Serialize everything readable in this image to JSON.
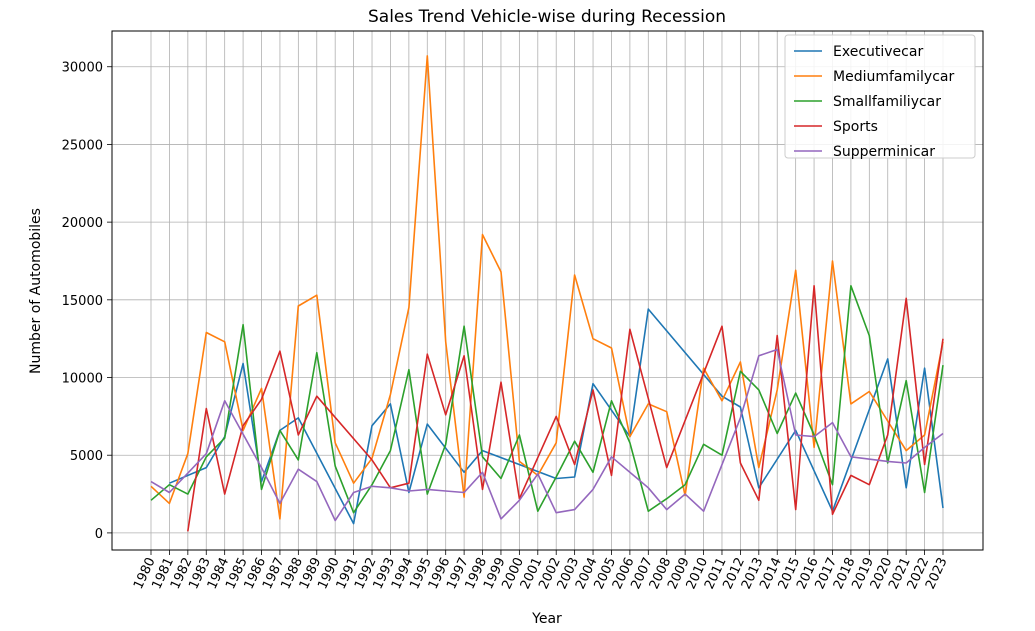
{
  "chart_data": {
    "type": "line",
    "title": "Sales Trend Vehicle-wise during Recession",
    "xlabel": "Year",
    "ylabel": "Number of Automobiles",
    "ylim": [
      -1100,
      32300
    ],
    "yticks": [
      0,
      5000,
      10000,
      15000,
      20000,
      25000,
      30000
    ],
    "grid": true,
    "legend_position": "top-right",
    "categories": [
      "1980",
      "1981",
      "1982",
      "1983",
      "1984",
      "1985",
      "1986",
      "1987",
      "1988",
      "1989",
      "1990",
      "1991",
      "1992",
      "1993",
      "1994",
      "1995",
      "1996",
      "1997",
      "1998",
      "1999",
      "2000",
      "2001",
      "2002",
      "2003",
      "2004",
      "2005",
      "2006",
      "2007",
      "2008",
      "2009",
      "2010",
      "2011",
      "2012",
      "2013",
      "2014",
      "2015",
      "2016",
      "2017",
      "2018",
      "2019",
      "2020",
      "2021",
      "2022",
      "2023"
    ],
    "series": [
      {
        "name": "Executivecar",
        "color": "#1f77b4",
        "points": [
          [
            1981,
            3200
          ],
          [
            1983,
            4200
          ],
          [
            1984,
            6200
          ],
          [
            1985,
            10900
          ],
          [
            1986,
            3300
          ],
          [
            1987,
            6600
          ],
          [
            1988,
            7400
          ],
          [
            1991,
            600
          ],
          [
            1992,
            6900
          ],
          [
            1993,
            8300
          ],
          [
            1994,
            2600
          ],
          [
            1995,
            7000
          ],
          [
            1997,
            3900
          ],
          [
            1998,
            5300
          ],
          [
            2002,
            3500
          ],
          [
            2003,
            3600
          ],
          [
            2004,
            9600
          ],
          [
            2006,
            6200
          ],
          [
            2007,
            14400
          ],
          [
            2011,
            8800
          ],
          [
            2012,
            8100
          ],
          [
            2013,
            2900
          ],
          [
            2015,
            6600
          ],
          [
            2017,
            1400
          ],
          [
            2020,
            11200
          ],
          [
            2021,
            2900
          ],
          [
            2022,
            10600
          ],
          [
            2023,
            1600
          ]
        ]
      },
      {
        "name": "Mediumfamilycar",
        "color": "#ff7f0e",
        "points": [
          [
            1980,
            3000
          ],
          [
            1981,
            1900
          ],
          [
            1982,
            5100
          ],
          [
            1983,
            12900
          ],
          [
            1984,
            12300
          ],
          [
            1985,
            6600
          ],
          [
            1986,
            9300
          ],
          [
            1987,
            900
          ],
          [
            1988,
            14600
          ],
          [
            1989,
            15300
          ],
          [
            1990,
            5800
          ],
          [
            1991,
            3200
          ],
          [
            1992,
            4800
          ],
          [
            1993,
            8900
          ],
          [
            1994,
            14500
          ],
          [
            1995,
            30700
          ],
          [
            1996,
            12300
          ],
          [
            1997,
            2300
          ],
          [
            1998,
            19200
          ],
          [
            1999,
            16800
          ],
          [
            2000,
            4600
          ],
          [
            2001,
            3700
          ],
          [
            2002,
            5800
          ],
          [
            2003,
            16600
          ],
          [
            2004,
            12500
          ],
          [
            2005,
            11900
          ],
          [
            2006,
            6200
          ],
          [
            2007,
            8300
          ],
          [
            2008,
            7800
          ],
          [
            2009,
            2400
          ],
          [
            2010,
            10600
          ],
          [
            2011,
            8500
          ],
          [
            2012,
            11000
          ],
          [
            2013,
            4200
          ],
          [
            2014,
            9200
          ],
          [
            2015,
            16900
          ],
          [
            2016,
            5500
          ],
          [
            2017,
            17500
          ],
          [
            2018,
            8300
          ],
          [
            2019,
            9100
          ],
          [
            2020,
            7200
          ],
          [
            2021,
            5300
          ],
          [
            2022,
            6300
          ],
          [
            2023,
            12300
          ]
        ]
      },
      {
        "name": "Smallfamiliycar",
        "color": "#2ca02c",
        "points": [
          [
            1980,
            2100
          ],
          [
            1981,
            3100
          ],
          [
            1982,
            2500
          ],
          [
            1983,
            4900
          ],
          [
            1984,
            6100
          ],
          [
            1985,
            13400
          ],
          [
            1986,
            2800
          ],
          [
            1987,
            6600
          ],
          [
            1988,
            4700
          ],
          [
            1989,
            11600
          ],
          [
            1990,
            4300
          ],
          [
            1991,
            1300
          ],
          [
            1992,
            3100
          ],
          [
            1993,
            5300
          ],
          [
            1994,
            10500
          ],
          [
            1995,
            2500
          ],
          [
            1996,
            5700
          ],
          [
            1997,
            13300
          ],
          [
            1998,
            4900
          ],
          [
            1999,
            3500
          ],
          [
            2000,
            6300
          ],
          [
            2001,
            1400
          ],
          [
            2002,
            3600
          ],
          [
            2003,
            5900
          ],
          [
            2004,
            3900
          ],
          [
            2005,
            8500
          ],
          [
            2006,
            5800
          ],
          [
            2007,
            1400
          ],
          [
            2008,
            2200
          ],
          [
            2009,
            3100
          ],
          [
            2010,
            5700
          ],
          [
            2011,
            5000
          ],
          [
            2012,
            10400
          ],
          [
            2013,
            9200
          ],
          [
            2014,
            6400
          ],
          [
            2015,
            9000
          ],
          [
            2016,
            6300
          ],
          [
            2017,
            3100
          ],
          [
            2018,
            15900
          ],
          [
            2019,
            12700
          ],
          [
            2020,
            4500
          ],
          [
            2021,
            9800
          ],
          [
            2022,
            2600
          ],
          [
            2023,
            10800
          ]
        ]
      },
      {
        "name": "Sports",
        "color": "#d62728",
        "points": [
          [
            1982,
            100
          ],
          [
            1983,
            8000
          ],
          [
            1984,
            2500
          ],
          [
            1985,
            6900
          ],
          [
            1986,
            8600
          ],
          [
            1987,
            11700
          ],
          [
            1988,
            6300
          ],
          [
            1989,
            8800
          ],
          [
            1992,
            4700
          ],
          [
            1993,
            2900
          ],
          [
            1994,
            3200
          ],
          [
            1995,
            11500
          ],
          [
            1996,
            7600
          ],
          [
            1997,
            11400
          ],
          [
            1998,
            2800
          ],
          [
            1999,
            9700
          ],
          [
            2000,
            2200
          ],
          [
            2002,
            7500
          ],
          [
            2003,
            4400
          ],
          [
            2004,
            9200
          ],
          [
            2005,
            3700
          ],
          [
            2006,
            13100
          ],
          [
            2008,
            4200
          ],
          [
            2011,
            13300
          ],
          [
            2012,
            4500
          ],
          [
            2013,
            2100
          ],
          [
            2014,
            12700
          ],
          [
            2015,
            1500
          ],
          [
            2016,
            15900
          ],
          [
            2017,
            1200
          ],
          [
            2018,
            3700
          ],
          [
            2019,
            3100
          ],
          [
            2020,
            6300
          ],
          [
            2021,
            15100
          ],
          [
            2022,
            4400
          ],
          [
            2023,
            12500
          ]
        ]
      },
      {
        "name": "Supperminicar",
        "color": "#9467bd",
        "points": [
          [
            1980,
            3300
          ],
          [
            1981,
            2600
          ],
          [
            1983,
            5100
          ],
          [
            1984,
            8500
          ],
          [
            1986,
            4200
          ],
          [
            1987,
            1900
          ],
          [
            1988,
            4100
          ],
          [
            1989,
            3300
          ],
          [
            1990,
            800
          ],
          [
            1991,
            2600
          ],
          [
            1992,
            3000
          ],
          [
            1993,
            2900
          ],
          [
            1994,
            2700
          ],
          [
            1995,
            2800
          ],
          [
            1996,
            2700
          ],
          [
            1997,
            2600
          ],
          [
            1998,
            3900
          ],
          [
            1999,
            900
          ],
          [
            2000,
            2100
          ],
          [
            2001,
            3800
          ],
          [
            2002,
            1300
          ],
          [
            2003,
            1500
          ],
          [
            2004,
            2800
          ],
          [
            2005,
            4900
          ],
          [
            2007,
            2900
          ],
          [
            2008,
            1500
          ],
          [
            2009,
            2500
          ],
          [
            2010,
            1400
          ],
          [
            2012,
            7400
          ],
          [
            2013,
            11400
          ],
          [
            2014,
            11800
          ],
          [
            2015,
            6300
          ],
          [
            2016,
            6200
          ],
          [
            2017,
            7100
          ],
          [
            2018,
            4900
          ],
          [
            2020,
            4600
          ],
          [
            2021,
            4500
          ],
          [
            2022,
            5500
          ],
          [
            2023,
            6400
          ]
        ]
      }
    ]
  }
}
